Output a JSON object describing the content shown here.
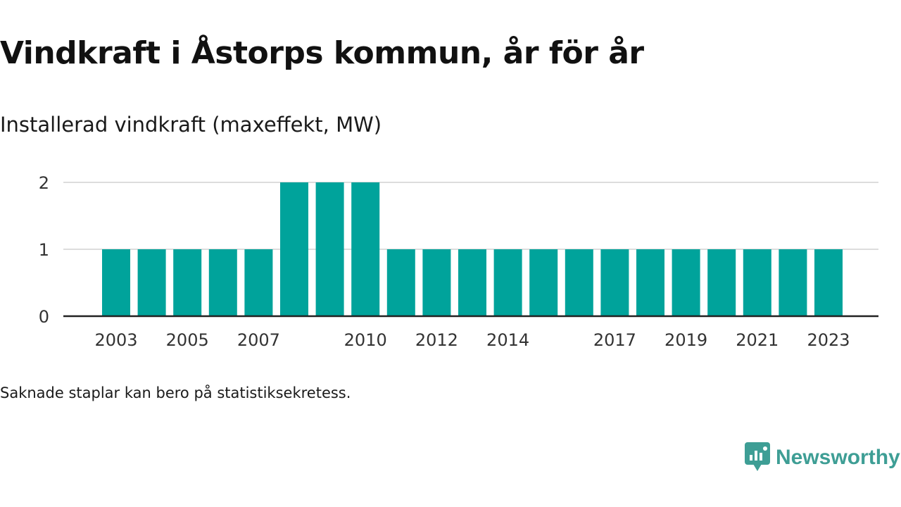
{
  "title": "Vindkraft i Åstorps kommun, år för år",
  "subtitle": "Installerad vindkraft (maxeffekt, MW)",
  "footnote": "Saknade staplar kan bero på statistiksekretess.",
  "brand": {
    "name": "Newsworthy",
    "icon": "newsworthy-chart-bubble-icon",
    "color": "#3e9e95"
  },
  "colors": {
    "bar": "#00a39b",
    "grid": "#dddddd",
    "axis": "#222222",
    "tick_text": "#333333"
  },
  "chart_data": {
    "type": "bar",
    "categories": [
      "2003",
      "2004",
      "2005",
      "2006",
      "2007",
      "2008",
      "2009",
      "2010",
      "2011",
      "2012",
      "2013",
      "2014",
      "2015",
      "2016",
      "2017",
      "2018",
      "2019",
      "2020",
      "2021",
      "2022",
      "2023"
    ],
    "values": [
      1,
      1,
      1,
      1,
      1,
      2,
      2,
      2,
      1,
      1,
      1,
      1,
      1,
      1,
      1,
      1,
      1,
      1,
      1,
      1,
      1
    ],
    "x_tick_labels": [
      "2003",
      "2005",
      "2007",
      "2010",
      "2012",
      "2014",
      "2017",
      "2019",
      "2021",
      "2023"
    ],
    "y_ticks": [
      0,
      1,
      2
    ],
    "ylim": [
      0,
      2
    ],
    "xlabel": "",
    "ylabel": "",
    "grid": true,
    "legend": "none"
  }
}
